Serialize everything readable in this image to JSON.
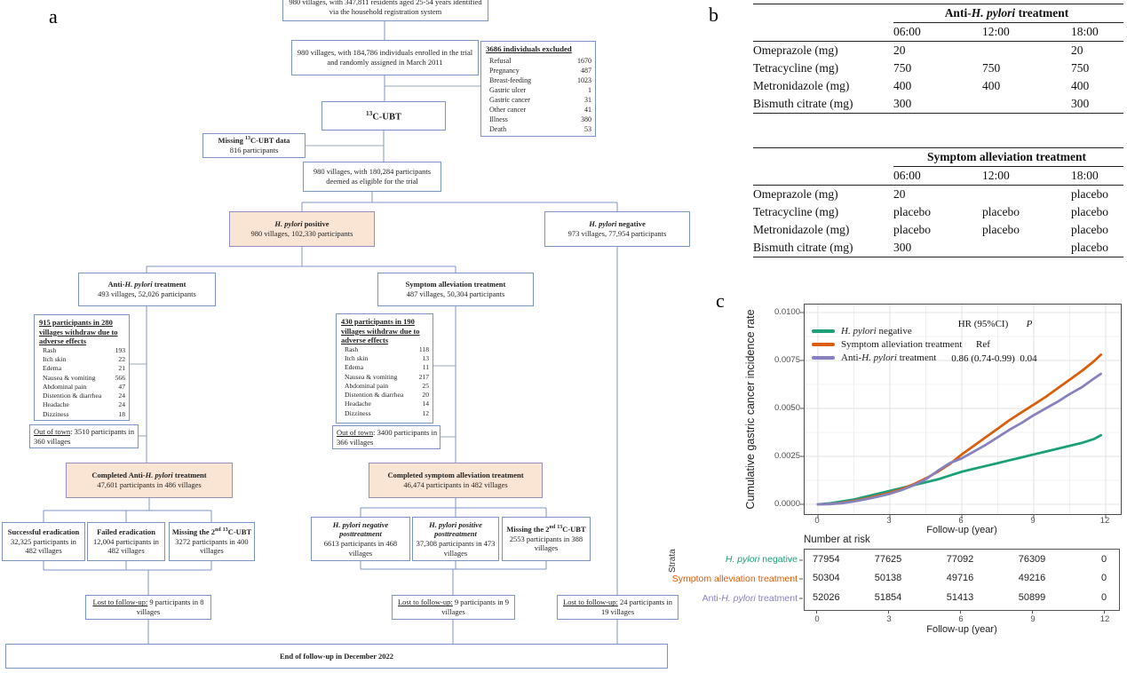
{
  "panels": {
    "a": "a",
    "b": "b",
    "c": "c"
  },
  "flowchart": {
    "top": "980 villages, with 347,811 residents aged 25-54 years identified via the household registration system",
    "enrolled": "980 villages, with 184,786 individuals enrolled in the trial and randomly assigned in March 2011",
    "excluded_title": "3686 individuals excluded",
    "excluded_rows": [
      [
        "Refusal",
        "1670"
      ],
      [
        "Pregnancy",
        "487"
      ],
      [
        "Breast-feeding",
        "1023"
      ],
      [
        "Gastric ulcer",
        "1"
      ],
      [
        "Gastric cancer",
        "31"
      ],
      [
        "Other cancer",
        "41"
      ],
      [
        "Illness",
        "380"
      ],
      [
        "Death",
        "53"
      ]
    ],
    "ubt_sup": "13",
    "ubt_text": "C-UBT",
    "missing_b1": "Missing ",
    "missing_sup": "13",
    "missing_b2": "C-UBT data",
    "missing_l2": "816 participants",
    "eligible": "980 villages, with 180,284 participants deemed as eligible for the trial",
    "pos_i": "H. pylori",
    "pos_r": " positive",
    "pos_l2": "980 villages, 102,330 participants",
    "neg_i": "H. pylori",
    "neg_r": " negative",
    "neg_l2": "973 villages, 77,954 participants",
    "anti_p": "Anti-",
    "anti_i": "H. pylori",
    "anti_s": " treatment",
    "anti_l2": "493 villages, 52,026 participants",
    "sym_t": "Symptom alleviation treatment",
    "sym_l2": "487 villages, 50,304 participants",
    "wl_title": "915 participants in 280 villages withdraw due to adverse effects",
    "wl_rows": [
      [
        "Rash",
        "193"
      ],
      [
        "Itch skin",
        "22"
      ],
      [
        "Edema",
        "21"
      ],
      [
        "Nausea & vomiting",
        "566"
      ],
      [
        "Abdominal pain",
        "47"
      ],
      [
        "Distention & diarrhea",
        "24"
      ],
      [
        "Headache",
        "24"
      ],
      [
        "Dizziness",
        "18"
      ]
    ],
    "wr_title": "430 participants in 190 villages withdraw due to adverse effects",
    "wr_rows": [
      [
        "Rash",
        "118"
      ],
      [
        "Itch skin",
        "13"
      ],
      [
        "Edema",
        "11"
      ],
      [
        "Nausea & vomiting",
        "217"
      ],
      [
        "Abdominal pain",
        "25"
      ],
      [
        "Distention & diarrhea",
        "20"
      ],
      [
        "Headache",
        "14"
      ],
      [
        "Dizziness",
        "12"
      ]
    ],
    "ool_u": "Out of town",
    "ool_r": ": 3510 participants in 360 villages",
    "oor_u": "Out of town",
    "oor_r": ": 3400 participants in 366 villages",
    "ca_p": "Completed Anti-",
    "ca_i": "H. pylori",
    "ca_s": " treatment",
    "ca_l2": "47,601 participants in 486 villages",
    "cs_t": "Completed symptom alleviation treatment",
    "cs_l2": "46,474 participants in 482 villages",
    "succ_t": "Successful eradication",
    "succ_l2": "32,325 participants in 482 villages",
    "fail_t": "Failed eradication",
    "fail_l2": "12,004 participants in 482 villages",
    "m2_p": "Missing the 2",
    "m2_s1": "nd",
    "m2_s2": "13",
    "m2_r": "C-UBT",
    "m2l_l2": "3272 participants in 400 villages",
    "m2r_l2": "2553 participants in 388 villages",
    "hpn_t": "H. pylori negative posttreatment",
    "hpn_l2": "6613 participants in 468 villages",
    "hpp_t": "H. pylori positive posttreatment",
    "hpp_l2": "37,308 participants in 473 villages",
    "ll_u": "Lost to follow-up:",
    "ll_r": " 9 participants in 8 villages",
    "lm_u": "Lost to follow-up:",
    "lm_r": " 9 participants in 9 villages",
    "lr_u": "Lost to follow-up:",
    "lr_r": " 24 participants in 19 villages",
    "end": "End of follow-up in December 2022"
  },
  "tables": {
    "t1": {
      "h_pre": "Anti-",
      "h_i": "H. pylori",
      "h_post": " treatment",
      "times": [
        "06:00",
        "12:00",
        "18:00"
      ],
      "rows": [
        [
          "Omeprazole (mg)",
          "20",
          "",
          "20"
        ],
        [
          "Tetracycline (mg)",
          "750",
          "750",
          "750"
        ],
        [
          "Metronidazole (mg)",
          "400",
          "400",
          "400"
        ],
        [
          "Bismuth citrate (mg)",
          "300",
          "",
          "300"
        ]
      ]
    },
    "t2": {
      "h": "Symptom alleviation treatment",
      "times": [
        "06:00",
        "12:00",
        "18:00"
      ],
      "rows": [
        [
          "Omeprazole (mg)",
          "20",
          "",
          "placebo"
        ],
        [
          "Tetracycline (mg)",
          "placebo",
          "placebo",
          "placebo"
        ],
        [
          "Metronidazole (mg)",
          "placebo",
          "placebo",
          "placebo"
        ],
        [
          "Bismuth citrate (mg)",
          "300",
          "",
          "placebo"
        ]
      ]
    }
  },
  "chart": {
    "ylabel": "Cumulative gastric cancer incidence rate",
    "xlabel": "Follow-up (year)",
    "y_ticks": [
      "0.0100",
      "0.0075",
      "0.0050",
      "0.0025",
      "0.0000"
    ],
    "x_ticks": [
      "0",
      "3",
      "6",
      "9",
      "12"
    ],
    "annot": {
      "col_hr": "HR (95%CI)",
      "col_p": "P",
      "ref": "Ref",
      "hr": "0.86 (0.74-0.99)",
      "p": "0.04"
    },
    "number_at_risk_label": "Number at risk",
    "strata_label": "Strata",
    "risk_xlabel": "Follow-up (year)",
    "strata": [
      {
        "pre": "",
        "italic": "H. pylori",
        "post": " negative",
        "color": "#1ba078",
        "risk": [
          "77954",
          "77625",
          "77092",
          "76309",
          "0"
        ]
      },
      {
        "pre": "Symptom alleviation treatment",
        "italic": "",
        "post": "",
        "color": "#dc5d0a",
        "risk": [
          "50304",
          "50138",
          "49716",
          "49216",
          "0"
        ]
      },
      {
        "pre": "Anti-",
        "italic": "H. pylori",
        "post": " treatment",
        "color": "#8781bf",
        "risk": [
          "52026",
          "51854",
          "51413",
          "50899",
          "0"
        ]
      }
    ]
  },
  "chart_data": {
    "type": "line",
    "title": "",
    "xlabel": "Follow-up (year)",
    "ylabel": "Cumulative gastric cancer incidence rate",
    "xlim": [
      0,
      12
    ],
    "ylim": [
      0,
      0.01
    ],
    "x_tick_values": [
      0,
      3,
      6,
      9,
      12
    ],
    "y_tick_values": [
      0.0,
      0.0025,
      0.005,
      0.0075,
      0.01
    ],
    "grid": true,
    "legend_position": "top-left-inside",
    "x": [
      0,
      0.5,
      1,
      1.5,
      2,
      2.5,
      3,
      3.5,
      4,
      4.5,
      5,
      5.5,
      6,
      6.5,
      7,
      7.5,
      8,
      8.5,
      9,
      9.5,
      10,
      10.5,
      11,
      11.5,
      11.8
    ],
    "series": [
      {
        "name": "H. pylori negative",
        "color": "#1ba078",
        "values": [
          0,
          5e-05,
          0.00015,
          0.00025,
          0.0004,
          0.00055,
          0.0007,
          0.00085,
          0.001,
          0.00115,
          0.0013,
          0.0015,
          0.0017,
          0.00185,
          0.002,
          0.00215,
          0.0023,
          0.00245,
          0.0026,
          0.00275,
          0.0029,
          0.00305,
          0.0032,
          0.0034,
          0.0036
        ]
      },
      {
        "name": "Symptom alleviation treatment",
        "color": "#dc5d0a",
        "values": [
          0,
          2e-05,
          8e-05,
          0.00018,
          0.0003,
          0.00045,
          0.0006,
          0.0008,
          0.00105,
          0.00135,
          0.0017,
          0.0021,
          0.0026,
          0.00305,
          0.0035,
          0.00395,
          0.0044,
          0.0048,
          0.0052,
          0.0056,
          0.00605,
          0.0065,
          0.00695,
          0.00745,
          0.0078
        ]
      },
      {
        "name": "Anti-H. pylori treatment",
        "color": "#8781bf",
        "values": [
          0,
          1.5e-05,
          6e-05,
          0.00015,
          0.00027,
          0.0004,
          0.00055,
          0.00075,
          0.001,
          0.0013,
          0.00175,
          0.00215,
          0.0024,
          0.00275,
          0.0031,
          0.0035,
          0.0039,
          0.00425,
          0.00465,
          0.005,
          0.00535,
          0.00575,
          0.0061,
          0.00655,
          0.0068
        ]
      }
    ],
    "annotations": [
      {
        "text": "HR (95%CI)"
      },
      {
        "text": "P"
      },
      {
        "series": "Symptom alleviation treatment",
        "hr": "Ref",
        "p": ""
      },
      {
        "series": "Anti-H. pylori treatment",
        "hr": "0.86 (0.74-0.99)",
        "p": "0.04"
      }
    ],
    "number_at_risk": {
      "times": [
        0,
        3,
        6,
        9,
        12
      ],
      "rows": [
        {
          "name": "H. pylori negative",
          "values": [
            77954,
            77625,
            77092,
            76309,
            0
          ]
        },
        {
          "name": "Symptom alleviation treatment",
          "values": [
            50304,
            50138,
            49716,
            49216,
            0
          ]
        },
        {
          "name": "Anti-H. pylori treatment",
          "values": [
            52026,
            51854,
            51413,
            50899,
            0
          ]
        }
      ]
    }
  }
}
